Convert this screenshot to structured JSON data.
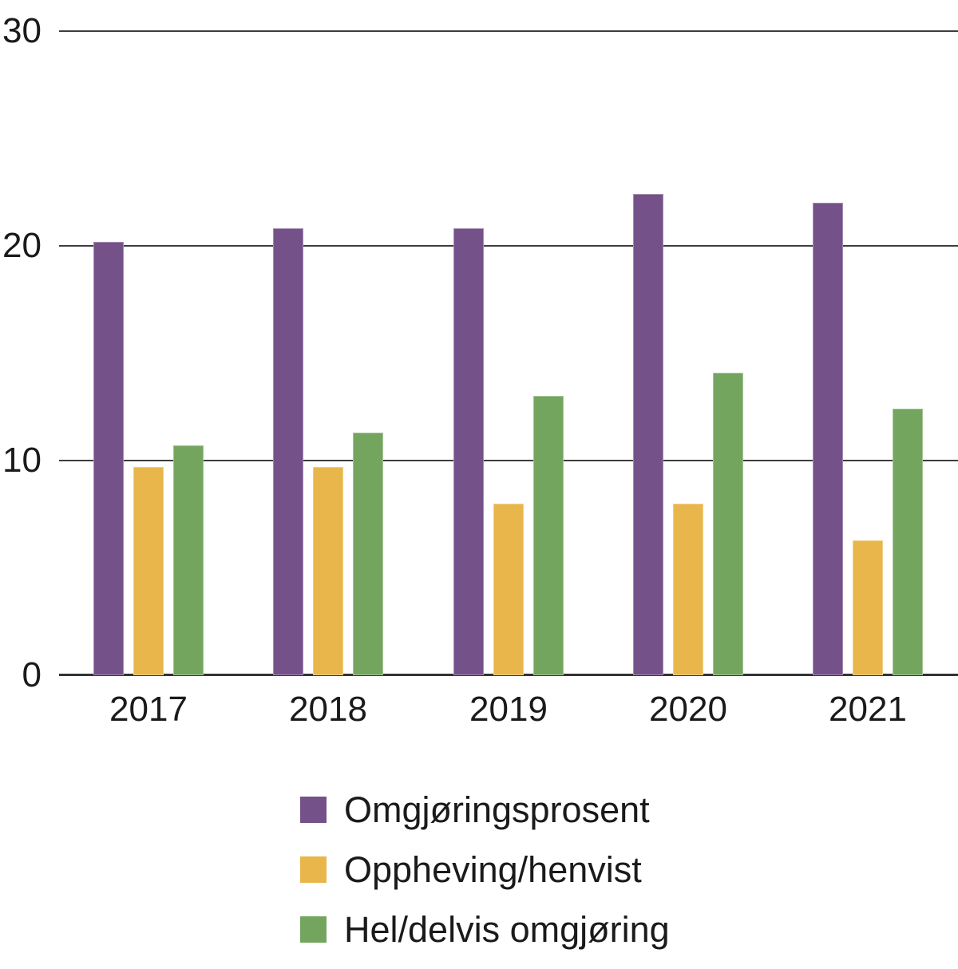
{
  "chart_data": {
    "type": "bar",
    "title": "",
    "xlabel": "",
    "ylabel": "",
    "categories": [
      "2017",
      "2018",
      "2019",
      "2020",
      "2021"
    ],
    "series": [
      {
        "name": "Omgjøringsprosent",
        "key": "omgjoringsprosent",
        "color": "#745189",
        "values": [
          20.2,
          20.8,
          20.8,
          22.4,
          22.0
        ]
      },
      {
        "name": "Oppheving/henvist",
        "key": "oppheving-henvist",
        "color": "#E8B64A",
        "values": [
          9.7,
          9.7,
          8.0,
          8.0,
          6.3
        ]
      },
      {
        "name": "Hel/delvis omgjøring",
        "key": "hel-delvis-omgjoring",
        "color": "#74A55F",
        "values": [
          10.7,
          11.3,
          13.0,
          14.1,
          12.4
        ]
      }
    ],
    "ylim": [
      0,
      30
    ],
    "yticks": [
      30,
      20,
      10,
      0
    ],
    "grid": "horizontal",
    "legend_position": "bottom-left"
  },
  "colors": {
    "grid": "#3d3d3d",
    "axis": "#333333",
    "text": "#1a1a1a",
    "background": "#ffffff"
  }
}
